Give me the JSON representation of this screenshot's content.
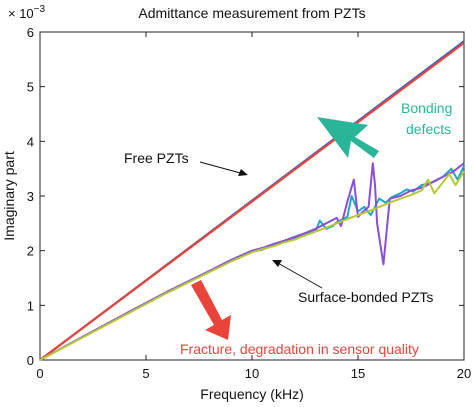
{
  "chart_data": {
    "type": "line",
    "title": "Admittance measurement from PZTs",
    "xlabel": "Frequency (kHz)",
    "ylabel": "Imaginary part",
    "y_multiplier": "× 10",
    "y_multiplier_exp": "−3",
    "xlim": [
      0,
      20
    ],
    "ylim": [
      0,
      6
    ],
    "x_ticks": [
      0,
      5,
      10,
      15,
      20
    ],
    "y_ticks": [
      0,
      1,
      2,
      3,
      4,
      5,
      6
    ],
    "grid": false,
    "series": [
      {
        "label": "free-pzt-blue",
        "color": "#3a5fcd",
        "x": [
          0,
          20
        ],
        "y": [
          0,
          5.83
        ]
      },
      {
        "label": "free-pzt-red",
        "color": "#e8443a",
        "x": [
          0,
          20
        ],
        "y": [
          0,
          5.8
        ]
      },
      {
        "label": "bonded-cyan",
        "color": "#1fa7c9",
        "x": [
          0,
          2,
          4,
          6,
          8,
          9,
          10,
          10.5,
          11,
          11.5,
          12,
          12.5,
          13,
          13.2,
          13.5,
          13.8,
          14,
          14.5,
          14.7,
          15,
          15.3,
          15.6,
          16,
          16.3,
          16.6,
          17,
          17.3,
          17.6,
          18,
          18.5,
          19,
          19.4,
          19.7,
          20
        ],
        "y": [
          0,
          0.42,
          0.83,
          1.24,
          1.62,
          1.82,
          1.98,
          2.02,
          2.1,
          2.16,
          2.22,
          2.3,
          2.36,
          2.55,
          2.4,
          2.45,
          2.52,
          2.62,
          3.0,
          2.72,
          2.8,
          2.65,
          2.95,
          2.88,
          2.98,
          3.05,
          3.12,
          3.08,
          3.2,
          3.25,
          3.35,
          3.5,
          3.3,
          3.55
        ]
      },
      {
        "label": "bonded-purple",
        "color": "#8a4fd6",
        "x": [
          0,
          2,
          4,
          6,
          8,
          9,
          10,
          10.5,
          11,
          11.5,
          12,
          12.5,
          13,
          13.5,
          14,
          14.2,
          14.5,
          14.8,
          15,
          15.2,
          15.5,
          15.7,
          15.8,
          15.9,
          16.1,
          16.2,
          16.5,
          17,
          17.5,
          18,
          18.5,
          19,
          19.5,
          20
        ],
        "y": [
          0,
          0.42,
          0.84,
          1.25,
          1.63,
          1.83,
          2.0,
          2.05,
          2.12,
          2.18,
          2.25,
          2.32,
          2.4,
          2.5,
          2.6,
          2.45,
          2.9,
          3.3,
          2.62,
          2.7,
          2.8,
          3.6,
          3.2,
          2.5,
          2.0,
          1.75,
          2.95,
          3.0,
          3.1,
          3.15,
          3.25,
          3.35,
          3.45,
          3.6
        ]
      },
      {
        "label": "bonded-yellow",
        "color": "#b8c832",
        "x": [
          0,
          2,
          4,
          6,
          8,
          9,
          10,
          10.5,
          11,
          11.5,
          12,
          12.5,
          13,
          13.5,
          14,
          14.5,
          15,
          15.5,
          16,
          16.5,
          17,
          17.5,
          18,
          18.3,
          18.6,
          19,
          19.3,
          19.6,
          20
        ],
        "y": [
          0,
          0.41,
          0.82,
          1.23,
          1.61,
          1.8,
          1.97,
          2.03,
          2.08,
          2.15,
          2.2,
          2.28,
          2.35,
          2.42,
          2.5,
          2.58,
          2.65,
          2.72,
          2.8,
          2.88,
          2.95,
          3.02,
          3.1,
          3.3,
          3.05,
          3.25,
          3.4,
          3.2,
          3.45
        ]
      }
    ],
    "annotations": {
      "free": "Free PZTs",
      "bonded": "Surface-bonded PZTs",
      "bonding_line1": "Bonding",
      "bonding_line2": "defects",
      "fracture": "Fracture, degradation in sensor quality"
    },
    "colors": {
      "bonding_arrow": "#2bb598",
      "bonding_text": "#2bb598",
      "fracture_arrow": "#e8443a",
      "fracture_text": "#e8443a"
    }
  }
}
